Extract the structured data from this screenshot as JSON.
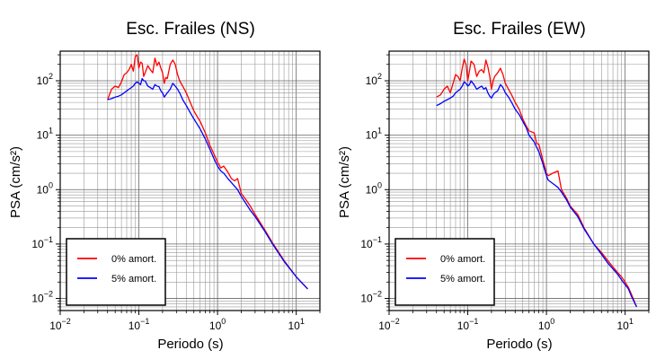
{
  "charts": [
    {
      "type": "line",
      "title": "Esc. Frailes (NS)",
      "xlabel": "Periodo (s)",
      "ylabel": "PSA (cm/s²)",
      "xscale": "log",
      "yscale": "log",
      "xlim": [
        0.01,
        20
      ],
      "ylim": [
        0.006,
        350
      ],
      "grid": true,
      "legend": "bottom-left",
      "x_ticks": [
        {
          "base": "10",
          "exp": "−2"
        },
        {
          "base": "10",
          "exp": "−1"
        },
        {
          "base": "10",
          "exp": "0"
        },
        {
          "base": "10",
          "exp": "1"
        }
      ],
      "y_ticks": [
        {
          "base": "10",
          "exp": "−2"
        },
        {
          "base": "10",
          "exp": "−1"
        },
        {
          "base": "10",
          "exp": "0"
        },
        {
          "base": "10",
          "exp": "1"
        },
        {
          "base": "10",
          "exp": "2"
        }
      ],
      "series": [
        {
          "name": "0% amort.",
          "color": "#ff0000",
          "x": [
            0.04,
            0.045,
            0.05,
            0.055,
            0.06,
            0.065,
            0.07,
            0.075,
            0.08,
            0.085,
            0.09,
            0.095,
            0.1,
            0.105,
            0.11,
            0.115,
            0.12,
            0.13,
            0.14,
            0.15,
            0.16,
            0.17,
            0.18,
            0.19,
            0.2,
            0.21,
            0.22,
            0.23,
            0.25,
            0.27,
            0.29,
            0.31,
            0.33,
            0.36,
            0.4,
            0.45,
            0.5,
            0.55,
            0.6,
            0.7,
            0.8,
            0.9,
            1.0,
            1.1,
            1.2,
            1.35,
            1.5,
            1.65,
            1.8,
            2.0,
            2.3,
            2.6,
            3.0,
            4.0,
            5.0,
            7.0,
            10.0,
            14.0
          ],
          "y": [
            45,
            70,
            80,
            75,
            95,
            130,
            140,
            160,
            200,
            150,
            280,
            300,
            170,
            220,
            210,
            120,
            140,
            190,
            160,
            140,
            260,
            190,
            220,
            170,
            140,
            90,
            115,
            110,
            200,
            240,
            200,
            130,
            100,
            80,
            60,
            40,
            28,
            22,
            18,
            11,
            6.5,
            4.5,
            3.2,
            2.5,
            2.7,
            2.1,
            1.6,
            1.45,
            1.6,
            0.85,
            0.65,
            0.5,
            0.35,
            0.18,
            0.105,
            0.05,
            0.025,
            0.015
          ]
        },
        {
          "name": "5% amort.",
          "color": "#0000ff",
          "x": [
            0.04,
            0.045,
            0.05,
            0.055,
            0.06,
            0.065,
            0.07,
            0.075,
            0.08,
            0.085,
            0.09,
            0.095,
            0.1,
            0.105,
            0.11,
            0.115,
            0.12,
            0.13,
            0.14,
            0.15,
            0.16,
            0.17,
            0.18,
            0.19,
            0.2,
            0.21,
            0.22,
            0.23,
            0.25,
            0.27,
            0.29,
            0.31,
            0.33,
            0.36,
            0.4,
            0.45,
            0.5,
            0.55,
            0.6,
            0.7,
            0.8,
            0.9,
            1.0,
            1.1,
            1.2,
            1.35,
            1.5,
            1.65,
            1.8,
            2.0,
            2.3,
            2.6,
            3.0,
            4.0,
            5.0,
            7.0,
            10.0,
            14.0
          ],
          "y": [
            45,
            47,
            50,
            52,
            55,
            60,
            65,
            70,
            75,
            80,
            90,
            95,
            90,
            85,
            110,
            100,
            100,
            80,
            75,
            70,
            85,
            80,
            78,
            65,
            60,
            50,
            55,
            60,
            70,
            90,
            80,
            70,
            60,
            45,
            35,
            26,
            20,
            16,
            13,
            8.5,
            5.5,
            3.7,
            2.7,
            2.2,
            2.0,
            1.6,
            1.35,
            1.15,
            1.0,
            0.75,
            0.55,
            0.42,
            0.32,
            0.17,
            0.1,
            0.048,
            0.025,
            0.015
          ]
        }
      ]
    },
    {
      "type": "line",
      "title": "Esc. Frailes (EW)",
      "xlabel": "Periodo (s)",
      "ylabel": "PSA (cm/s²)",
      "xscale": "log",
      "yscale": "log",
      "xlim": [
        0.01,
        20
      ],
      "ylim": [
        0.006,
        350
      ],
      "grid": true,
      "legend": "bottom-left",
      "x_ticks": [
        {
          "base": "10",
          "exp": "−2"
        },
        {
          "base": "10",
          "exp": "−1"
        },
        {
          "base": "10",
          "exp": "0"
        },
        {
          "base": "10",
          "exp": "1"
        }
      ],
      "y_ticks": [
        {
          "base": "10",
          "exp": "−2"
        },
        {
          "base": "10",
          "exp": "−1"
        },
        {
          "base": "10",
          "exp": "0"
        },
        {
          "base": "10",
          "exp": "1"
        },
        {
          "base": "10",
          "exp": "2"
        }
      ],
      "series": [
        {
          "name": "0% amort.",
          "color": "#ff0000",
          "x": [
            0.04,
            0.045,
            0.05,
            0.055,
            0.06,
            0.065,
            0.07,
            0.075,
            0.08,
            0.085,
            0.09,
            0.095,
            0.1,
            0.105,
            0.11,
            0.12,
            0.13,
            0.14,
            0.15,
            0.16,
            0.17,
            0.18,
            0.19,
            0.2,
            0.21,
            0.22,
            0.24,
            0.26,
            0.28,
            0.3,
            0.33,
            0.36,
            0.4,
            0.45,
            0.5,
            0.55,
            0.6,
            0.7,
            0.75,
            0.8,
            0.9,
            1.0,
            1.05,
            1.2,
            1.4,
            1.55,
            1.8,
            2.0,
            2.5,
            3.0,
            4.0,
            5.0,
            6.0,
            7.0,
            8.0,
            9.0,
            10.0,
            11.0,
            12.0,
            14.0
          ],
          "y": [
            50,
            55,
            70,
            80,
            60,
            90,
            130,
            120,
            100,
            170,
            250,
            200,
            100,
            150,
            230,
            200,
            120,
            150,
            160,
            140,
            240,
            180,
            120,
            70,
            100,
            120,
            140,
            170,
            130,
            90,
            70,
            55,
            40,
            30,
            20,
            15,
            12,
            11,
            7,
            6.8,
            3.5,
            2.0,
            1.8,
            2.0,
            2.2,
            1.0,
            0.7,
            0.5,
            0.35,
            0.2,
            0.1,
            0.07,
            0.05,
            0.038,
            0.03,
            0.025,
            0.02,
            0.016,
            0.012,
            0.007
          ]
        },
        {
          "name": "5% amort.",
          "color": "#0000ff",
          "x": [
            0.04,
            0.045,
            0.05,
            0.055,
            0.06,
            0.065,
            0.07,
            0.075,
            0.08,
            0.085,
            0.09,
            0.095,
            0.1,
            0.105,
            0.11,
            0.12,
            0.13,
            0.14,
            0.15,
            0.16,
            0.17,
            0.18,
            0.19,
            0.2,
            0.21,
            0.22,
            0.24,
            0.26,
            0.28,
            0.3,
            0.33,
            0.36,
            0.4,
            0.45,
            0.5,
            0.55,
            0.6,
            0.7,
            0.75,
            0.8,
            0.9,
            1.0,
            1.05,
            1.2,
            1.4,
            1.55,
            1.8,
            2.0,
            2.5,
            3.0,
            4.0,
            5.0,
            6.0,
            7.0,
            8.0,
            9.0,
            10.0,
            11.0,
            12.0,
            14.0
          ],
          "y": [
            35,
            38,
            42,
            45,
            48,
            52,
            60,
            65,
            70,
            80,
            95,
            90,
            80,
            85,
            100,
            85,
            70,
            75,
            80,
            70,
            75,
            60,
            52,
            48,
            55,
            60,
            65,
            85,
            75,
            60,
            50,
            40,
            30,
            24,
            18,
            14,
            10,
            7.5,
            6,
            5,
            3,
            1.8,
            1.5,
            1.3,
            1.1,
            0.9,
            0.65,
            0.48,
            0.32,
            0.19,
            0.1,
            0.065,
            0.045,
            0.035,
            0.028,
            0.022,
            0.018,
            0.015,
            0.011,
            0.007
          ]
        }
      ]
    }
  ]
}
